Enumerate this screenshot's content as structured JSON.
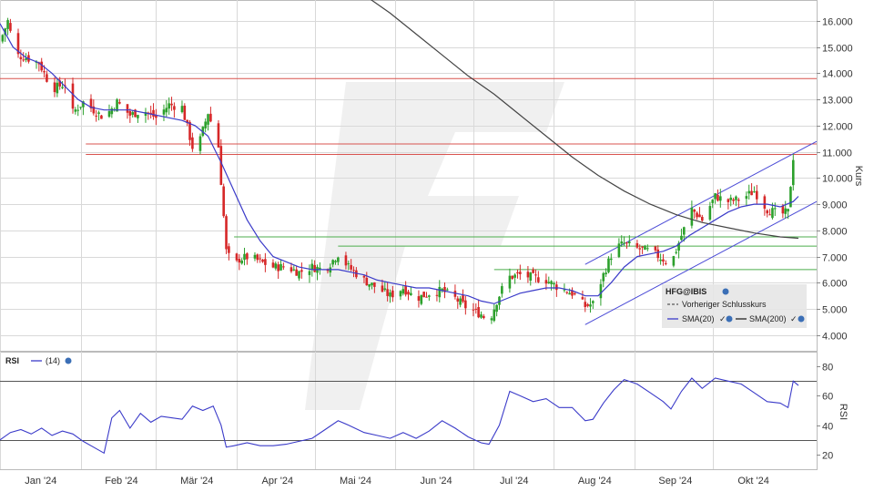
{
  "colors": {
    "grid": "#d9d9d9",
    "up": "#2ca02c",
    "down": "#d62728",
    "sma20": "#3b3bc9",
    "sma200": "#444444",
    "resistance": "#d9534f",
    "support": "#4cae4c",
    "channel": "#4a4ad6",
    "rsi": "#3b3bc9",
    "rsi_levels": "#555555",
    "watermark": "#e3e3e3"
  },
  "chart_data": [
    {
      "type": "candlestick",
      "name": "price",
      "ylabel": "Kurs",
      "ylim": [
        3.4,
        16.8
      ],
      "yticks": [
        4,
        5,
        6,
        7,
        8,
        9,
        10,
        11,
        12,
        13,
        14,
        15,
        16
      ],
      "ytick_labels": [
        "4.000",
        "5.000",
        "6.000",
        "7.000",
        "8.000",
        "9.000",
        "10.000",
        "11.000",
        "12.000",
        "13.000",
        "14.000",
        "15.000",
        "16.000"
      ],
      "x_months": [
        "Jan '24",
        "Feb '24",
        "Mär '24",
        "Apr '24",
        "Mai '24",
        "Jun '24",
        "Jul '24",
        "Aug '24",
        "Sep '24",
        "Okt '24"
      ],
      "x_range_days": [
        0,
        314
      ],
      "close_path": [
        [
          0,
          15.2
        ],
        [
          3,
          16.0
        ],
        [
          6,
          14.7
        ],
        [
          10,
          14.6
        ],
        [
          15,
          14.4
        ],
        [
          20,
          13.4
        ],
        [
          25,
          13.6
        ],
        [
          28,
          12.5
        ],
        [
          32,
          12.9
        ],
        [
          36,
          12.6
        ],
        [
          40,
          12.3
        ],
        [
          45,
          12.9
        ],
        [
          50,
          12.4
        ],
        [
          55,
          12.6
        ],
        [
          60,
          12.3
        ],
        [
          65,
          12.8
        ],
        [
          70,
          12.7
        ],
        [
          75,
          10.8
        ],
        [
          80,
          12.5
        ],
        [
          84,
          11.2
        ],
        [
          87,
          7.2
        ],
        [
          90,
          6.6
        ],
        [
          92,
          6.9
        ],
        [
          96,
          7.0
        ],
        [
          100,
          6.8
        ],
        [
          105,
          6.6
        ],
        [
          110,
          6.6
        ],
        [
          115,
          6.4
        ],
        [
          120,
          6.6
        ],
        [
          125,
          6.5
        ],
        [
          130,
          7.1
        ],
        [
          134,
          6.6
        ],
        [
          140,
          6.1
        ],
        [
          145,
          5.8
        ],
        [
          150,
          5.5
        ],
        [
          155,
          5.8
        ],
        [
          160,
          5.4
        ],
        [
          165,
          5.6
        ],
        [
          170,
          5.7
        ],
        [
          175,
          5.4
        ],
        [
          180,
          5.0
        ],
        [
          185,
          4.8
        ],
        [
          188,
          4.5
        ],
        [
          191,
          5.3
        ],
        [
          195,
          6.2
        ],
        [
          200,
          6.3
        ],
        [
          205,
          6.2
        ],
        [
          210,
          6.1
        ],
        [
          215,
          5.8
        ],
        [
          220,
          5.6
        ],
        [
          225,
          5.1
        ],
        [
          228,
          5.2
        ],
        [
          232,
          6.3
        ],
        [
          236,
          7.3
        ],
        [
          240,
          7.5
        ],
        [
          245,
          7.3
        ],
        [
          250,
          7.2
        ],
        [
          255,
          6.9
        ],
        [
          258,
          6.7
        ],
        [
          262,
          7.8
        ],
        [
          266,
          8.8
        ],
        [
          270,
          8.4
        ],
        [
          275,
          9.3
        ],
        [
          280,
          9.1
        ],
        [
          285,
          9.2
        ],
        [
          290,
          9.5
        ],
        [
          295,
          8.8
        ],
        [
          300,
          8.6
        ],
        [
          303,
          8.7
        ],
        [
          305,
          10.8
        ],
        [
          307,
          9.8
        ]
      ],
      "horizontal_lines": {
        "resistance": [
          13.8,
          11.3,
          10.9
        ],
        "support": [
          7.75,
          7.4,
          6.5
        ]
      },
      "channel": {
        "upper": [
          [
            225,
            6.7
          ],
          [
            314,
            11.4
          ]
        ],
        "lower": [
          [
            225,
            4.4
          ],
          [
            314,
            9.1
          ]
        ]
      },
      "series": [
        {
          "name": "SMA(20)",
          "points": [
            [
              0,
              15.9
            ],
            [
              5,
              15.0
            ],
            [
              10,
              14.6
            ],
            [
              15,
              14.4
            ],
            [
              20,
              14.0
            ],
            [
              25,
              13.5
            ],
            [
              30,
              13.0
            ],
            [
              35,
              12.7
            ],
            [
              40,
              12.6
            ],
            [
              45,
              12.6
            ],
            [
              50,
              12.6
            ],
            [
              55,
              12.5
            ],
            [
              60,
              12.4
            ],
            [
              65,
              12.3
            ],
            [
              70,
              12.2
            ],
            [
              75,
              12.0
            ],
            [
              80,
              11.6
            ],
            [
              85,
              10.6
            ],
            [
              90,
              9.5
            ],
            [
              95,
              8.4
            ],
            [
              100,
              7.6
            ],
            [
              105,
              7.0
            ],
            [
              110,
              6.8
            ],
            [
              115,
              6.6
            ],
            [
              120,
              6.5
            ],
            [
              125,
              6.5
            ],
            [
              130,
              6.5
            ],
            [
              135,
              6.4
            ],
            [
              140,
              6.3
            ],
            [
              145,
              6.1
            ],
            [
              150,
              6.0
            ],
            [
              155,
              5.9
            ],
            [
              160,
              5.8
            ],
            [
              165,
              5.8
            ],
            [
              170,
              5.7
            ],
            [
              175,
              5.6
            ],
            [
              180,
              5.5
            ],
            [
              185,
              5.3
            ],
            [
              190,
              5.2
            ],
            [
              195,
              5.4
            ],
            [
              200,
              5.6
            ],
            [
              205,
              5.7
            ],
            [
              210,
              5.8
            ],
            [
              215,
              5.8
            ],
            [
              220,
              5.7
            ],
            [
              225,
              5.5
            ],
            [
              230,
              5.5
            ],
            [
              235,
              6.0
            ],
            [
              240,
              6.6
            ],
            [
              245,
              7.0
            ],
            [
              250,
              7.1
            ],
            [
              255,
              7.2
            ],
            [
              260,
              7.4
            ],
            [
              265,
              7.8
            ],
            [
              270,
              8.1
            ],
            [
              275,
              8.4
            ],
            [
              280,
              8.7
            ],
            [
              285,
              8.9
            ],
            [
              290,
              9.0
            ],
            [
              295,
              9.0
            ],
            [
              300,
              8.9
            ],
            [
              305,
              9.1
            ],
            [
              307,
              9.3
            ]
          ]
        },
        {
          "name": "SMA(200)",
          "points": [
            [
              140,
              17.0
            ],
            [
              150,
              16.3
            ],
            [
              160,
              15.5
            ],
            [
              170,
              14.7
            ],
            [
              180,
              13.9
            ],
            [
              190,
              13.2
            ],
            [
              200,
              12.4
            ],
            [
              210,
              11.6
            ],
            [
              220,
              10.8
            ],
            [
              230,
              10.1
            ],
            [
              240,
              9.5
            ],
            [
              250,
              9.0
            ],
            [
              260,
              8.6
            ],
            [
              270,
              8.3
            ],
            [
              280,
              8.1
            ],
            [
              290,
              7.9
            ],
            [
              300,
              7.75
            ],
            [
              307,
              7.7
            ]
          ]
        }
      ],
      "legend": {
        "title": "HFG@IBIS",
        "entries": [
          "Vorheriger Schlusskurs",
          "SMA(20)",
          "SMA(200)"
        ]
      }
    },
    {
      "type": "line",
      "name": "RSI",
      "ylabel": "RSI",
      "ylim": [
        10,
        90
      ],
      "yticks": [
        20,
        40,
        60,
        80
      ],
      "ytick_labels": [
        "20",
        "40",
        "60",
        "80"
      ],
      "levels": [
        70,
        30
      ],
      "legend_title": "RSI",
      "legend_entry": "(14)",
      "series": [
        {
          "name": "(14)",
          "points": [
            [
              0,
              30
            ],
            [
              4,
              35
            ],
            [
              8,
              37
            ],
            [
              12,
              34
            ],
            [
              16,
              38
            ],
            [
              20,
              33
            ],
            [
              24,
              36
            ],
            [
              28,
              34
            ],
            [
              32,
              29
            ],
            [
              36,
              25
            ],
            [
              40,
              21
            ],
            [
              43,
              45
            ],
            [
              46,
              50
            ],
            [
              50,
              38
            ],
            [
              54,
              48
            ],
            [
              58,
              42
            ],
            [
              62,
              46
            ],
            [
              66,
              45
            ],
            [
              70,
              44
            ],
            [
              74,
              53
            ],
            [
              78,
              50
            ],
            [
              82,
              53
            ],
            [
              85,
              40
            ],
            [
              87,
              25
            ],
            [
              90,
              26
            ],
            [
              95,
              28
            ],
            [
              100,
              26
            ],
            [
              105,
              26
            ],
            [
              110,
              27
            ],
            [
              115,
              29
            ],
            [
              120,
              31
            ],
            [
              125,
              37
            ],
            [
              130,
              43
            ],
            [
              134,
              40
            ],
            [
              140,
              35
            ],
            [
              145,
              33
            ],
            [
              150,
              31
            ],
            [
              155,
              35
            ],
            [
              160,
              31
            ],
            [
              165,
              36
            ],
            [
              170,
              43
            ],
            [
              175,
              38
            ],
            [
              180,
              32
            ],
            [
              185,
              28
            ],
            [
              188,
              27
            ],
            [
              192,
              40
            ],
            [
              196,
              63
            ],
            [
              200,
              60
            ],
            [
              205,
              56
            ],
            [
              210,
              58
            ],
            [
              215,
              52
            ],
            [
              220,
              52
            ],
            [
              225,
              43
            ],
            [
              228,
              44
            ],
            [
              232,
              55
            ],
            [
              236,
              64
            ],
            [
              240,
              71
            ],
            [
              245,
              68
            ],
            [
              250,
              62
            ],
            [
              255,
              56
            ],
            [
              258,
              51
            ],
            [
              262,
              63
            ],
            [
              266,
              72
            ],
            [
              270,
              65
            ],
            [
              275,
              72
            ],
            [
              280,
              70
            ],
            [
              285,
              68
            ],
            [
              290,
              62
            ],
            [
              295,
              56
            ],
            [
              300,
              55
            ],
            [
              303,
              52
            ],
            [
              305,
              70
            ],
            [
              307,
              67
            ]
          ]
        }
      ]
    }
  ]
}
